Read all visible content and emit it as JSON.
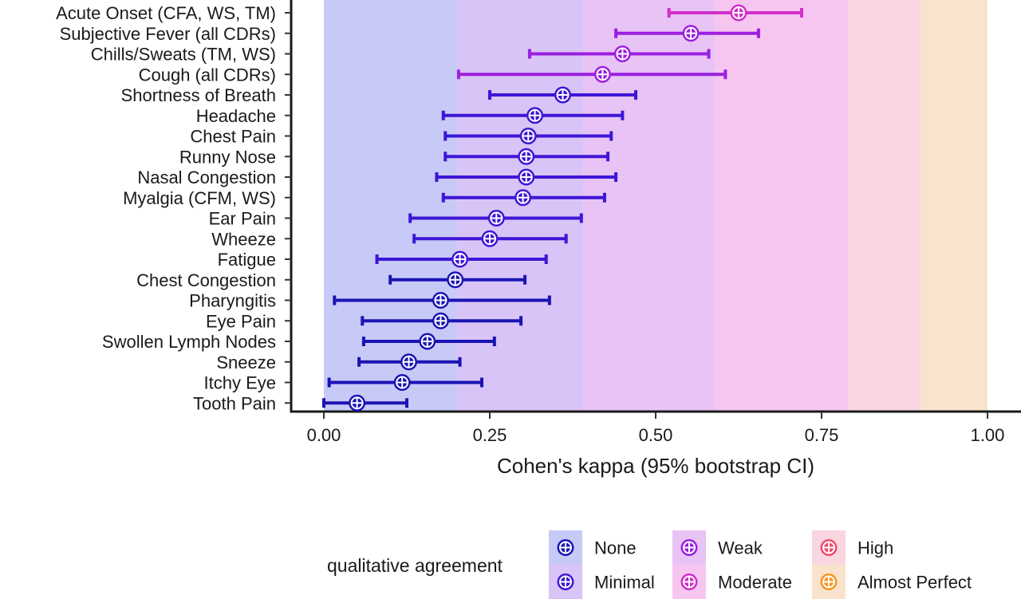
{
  "chart_data": {
    "type": "forest",
    "xlabel": "Cohen's kappa (95% bootstrap CI)",
    "xlim": [
      0,
      1
    ],
    "xticks": [
      0.0,
      0.25,
      0.5,
      0.75,
      1.0
    ],
    "xtick_labels": [
      "0.00",
      "0.25",
      "0.50",
      "0.75",
      "1.00"
    ],
    "bands": [
      {
        "name": "None",
        "from": 0.0,
        "to": 0.2,
        "color": "#c7c9f7"
      },
      {
        "name": "Minimal",
        "from": 0.2,
        "to": 0.39,
        "color": "#d9c4f7"
      },
      {
        "name": "Weak",
        "from": 0.39,
        "to": 0.59,
        "color": "#e8c3f5"
      },
      {
        "name": "Moderate",
        "from": 0.59,
        "to": 0.79,
        "color": "#f6c6f1"
      },
      {
        "name": "High",
        "from": 0.79,
        "to": 0.9,
        "color": "#f9d6e0"
      },
      {
        "name": "Almost Perfect",
        "from": 0.9,
        "to": 1.0,
        "color": "#fae3cd"
      }
    ],
    "items": [
      {
        "label": "Acute Onset (CFA, WS, TM)",
        "kappa": 0.625,
        "lo": 0.52,
        "hi": 0.72,
        "level": "Moderate"
      },
      {
        "label": "Subjective Fever (all CDRs)",
        "kappa": 0.553,
        "lo": 0.44,
        "hi": 0.655,
        "level": "Weak"
      },
      {
        "label": "Chills/Sweats (TM, WS)",
        "kappa": 0.45,
        "lo": 0.31,
        "hi": 0.58,
        "level": "Weak"
      },
      {
        "label": "Cough (all CDRs)",
        "kappa": 0.42,
        "lo": 0.203,
        "hi": 0.605,
        "level": "Weak"
      },
      {
        "label": "Shortness of Breath",
        "kappa": 0.36,
        "lo": 0.25,
        "hi": 0.47,
        "level": "Minimal"
      },
      {
        "label": "Headache",
        "kappa": 0.318,
        "lo": 0.18,
        "hi": 0.45,
        "level": "Minimal"
      },
      {
        "label": "Chest Pain",
        "kappa": 0.308,
        "lo": 0.183,
        "hi": 0.433,
        "level": "Minimal"
      },
      {
        "label": "Runny Nose",
        "kappa": 0.305,
        "lo": 0.183,
        "hi": 0.428,
        "level": "Minimal"
      },
      {
        "label": "Nasal Congestion",
        "kappa": 0.305,
        "lo": 0.17,
        "hi": 0.44,
        "level": "Minimal"
      },
      {
        "label": "Myalgia (CFM, WS)",
        "kappa": 0.3,
        "lo": 0.18,
        "hi": 0.423,
        "level": "Minimal"
      },
      {
        "label": "Ear Pain",
        "kappa": 0.26,
        "lo": 0.13,
        "hi": 0.388,
        "level": "Minimal"
      },
      {
        "label": "Wheeze",
        "kappa": 0.25,
        "lo": 0.136,
        "hi": 0.365,
        "level": "Minimal"
      },
      {
        "label": "Fatigue",
        "kappa": 0.205,
        "lo": 0.08,
        "hi": 0.335,
        "level": "Minimal"
      },
      {
        "label": "Chest Congestion",
        "kappa": 0.198,
        "lo": 0.1,
        "hi": 0.303,
        "level": "None"
      },
      {
        "label": "Pharyngitis",
        "kappa": 0.176,
        "lo": 0.016,
        "hi": 0.34,
        "level": "None"
      },
      {
        "label": "Eye Pain",
        "kappa": 0.176,
        "lo": 0.058,
        "hi": 0.297,
        "level": "None"
      },
      {
        "label": "Swollen Lymph Nodes",
        "kappa": 0.156,
        "lo": 0.06,
        "hi": 0.257,
        "level": "None"
      },
      {
        "label": "Sneeze",
        "kappa": 0.128,
        "lo": 0.053,
        "hi": 0.205,
        "level": "None"
      },
      {
        "label": "Itchy Eye",
        "kappa": 0.118,
        "lo": 0.008,
        "hi": 0.238,
        "level": "None"
      },
      {
        "label": "Tooth Pain",
        "kappa": 0.05,
        "lo": 0.0,
        "hi": 0.125,
        "level": "None"
      }
    ],
    "legend": {
      "title": "qualitative agreement",
      "placement": "bottom",
      "entries": [
        {
          "name": "None",
          "color": "#1a14b4",
          "bg": "#c7c9f7"
        },
        {
          "name": "Minimal",
          "color": "#3d16d6",
          "bg": "#d9c4f7"
        },
        {
          "name": "Weak",
          "color": "#9b1fe0",
          "bg": "#e8c3f5"
        },
        {
          "name": "Moderate",
          "color": "#d12fc8",
          "bg": "#f6c6f1"
        },
        {
          "name": "High",
          "color": "#ef4a6a",
          "bg": "#f9d6e0"
        },
        {
          "name": "Almost Perfect",
          "color": "#f7931e",
          "bg": "#fae3cd"
        }
      ]
    }
  }
}
